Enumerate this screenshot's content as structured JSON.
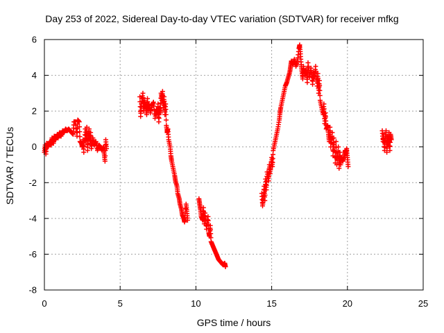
{
  "chart_data": {
    "type": "scatter",
    "title": "Day 253 of 2022, Sidereal Day-to-day VTEC variation (SDTVAR) for receiver mfkg",
    "xlabel": "GPS time / hours",
    "ylabel": "SDTVAR / TECUs",
    "xlim": [
      0,
      25
    ],
    "ylim": [
      -8,
      6
    ],
    "grid": true,
    "marker": "+",
    "color": "#ff0000",
    "xticks": [
      "0",
      "5",
      "10",
      "15",
      "20",
      "25"
    ],
    "yticks": [
      "-8",
      "-6",
      "-4",
      "-2",
      "0",
      "2",
      "4",
      "6"
    ],
    "segments": [
      [
        [
          0.0,
          -0.3
        ],
        [
          0.05,
          0.1
        ],
        [
          0.1,
          -0.4
        ],
        [
          0.15,
          0.2
        ],
        [
          0.25,
          0.0
        ],
        [
          0.35,
          0.3
        ],
        [
          0.45,
          0.1
        ],
        [
          0.5,
          0.5
        ],
        [
          0.6,
          0.2
        ],
        [
          0.65,
          0.6
        ],
        [
          0.75,
          0.4
        ],
        [
          0.85,
          0.7
        ],
        [
          0.9,
          0.5
        ],
        [
          1.0,
          0.8
        ],
        [
          1.1,
          0.6
        ],
        [
          1.2,
          0.9
        ],
        [
          1.3,
          0.8
        ],
        [
          1.4,
          1.0
        ],
        [
          1.5,
          0.9
        ],
        [
          1.6,
          1.0
        ],
        [
          1.7,
          0.9
        ],
        [
          1.8,
          0.8
        ],
        [
          1.9,
          0.7
        ],
        [
          1.95,
          1.4
        ],
        [
          2.05,
          1.4
        ],
        [
          2.15,
          0.6
        ],
        [
          2.2,
          1.5
        ],
        [
          2.3,
          1.4
        ],
        [
          2.35,
          0.3
        ],
        [
          2.45,
          0.2
        ],
        [
          2.5,
          0.0
        ],
        [
          2.55,
          0.4
        ],
        [
          2.6,
          -0.3
        ],
        [
          2.7,
          1.0
        ],
        [
          2.75,
          0.3
        ],
        [
          2.8,
          1.1
        ],
        [
          2.85,
          -0.2
        ],
        [
          2.9,
          0.5
        ],
        [
          2.95,
          1.0
        ],
        [
          3.0,
          0.2
        ],
        [
          3.05,
          0.8
        ],
        [
          3.1,
          -0.1
        ],
        [
          3.2,
          0.5
        ],
        [
          3.3,
          0.1
        ],
        [
          3.4,
          0.3
        ],
        [
          3.5,
          -0.2
        ],
        [
          3.6,
          0.1
        ],
        [
          3.7,
          0.0
        ],
        [
          3.8,
          -0.2
        ],
        [
          3.9,
          0.0
        ],
        [
          3.95,
          -0.4
        ],
        [
          4.0,
          -0.8
        ],
        [
          4.05,
          0.4
        ],
        [
          4.1,
          -0.1
        ]
      ],
      [
        [
          6.3,
          2.8
        ],
        [
          6.35,
          1.7
        ],
        [
          6.4,
          2.4
        ],
        [
          6.5,
          3.0
        ],
        [
          6.55,
          2.0
        ],
        [
          6.6,
          2.6
        ],
        [
          6.7,
          2.2
        ],
        [
          6.75,
          1.8
        ],
        [
          6.8,
          2.7
        ],
        [
          6.85,
          2.0
        ],
        [
          6.9,
          2.4
        ],
        [
          7.0,
          1.9
        ],
        [
          7.1,
          2.3
        ],
        [
          7.2,
          2.5
        ],
        [
          7.3,
          1.6
        ],
        [
          7.4,
          2.1
        ],
        [
          7.45,
          1.8
        ],
        [
          7.5,
          2.4
        ],
        [
          7.55,
          1.4
        ],
        [
          7.6,
          2.2
        ],
        [
          7.65,
          1.9
        ],
        [
          7.7,
          3.0
        ],
        [
          7.75,
          2.6
        ],
        [
          7.8,
          3.1
        ],
        [
          7.85,
          2.2
        ],
        [
          7.9,
          2.8
        ],
        [
          7.95,
          1.8
        ],
        [
          8.0,
          2.4
        ],
        [
          8.05,
          1.2
        ],
        [
          8.1,
          0.8
        ],
        [
          8.15,
          1.0
        ],
        [
          8.2,
          0.4
        ],
        [
          8.3,
          0.0
        ],
        [
          8.35,
          -0.5
        ],
        [
          8.4,
          -0.8
        ],
        [
          8.5,
          -1.2
        ],
        [
          8.6,
          -1.6
        ],
        [
          8.65,
          -1.9
        ],
        [
          8.75,
          -2.2
        ],
        [
          8.8,
          -2.6
        ],
        [
          8.9,
          -2.9
        ],
        [
          8.95,
          -3.2
        ],
        [
          9.05,
          -3.5
        ],
        [
          9.1,
          -3.8
        ],
        [
          9.2,
          -4.0
        ],
        [
          9.25,
          -4.2
        ],
        [
          9.35,
          -3.2
        ],
        [
          9.4,
          -3.6
        ],
        [
          9.45,
          -4.1
        ]
      ],
      [
        [
          10.2,
          -2.9
        ],
        [
          10.25,
          -3.2
        ],
        [
          10.3,
          -3.5
        ],
        [
          10.35,
          -3.9
        ],
        [
          10.45,
          -4.1
        ],
        [
          10.5,
          -3.4
        ],
        [
          10.55,
          -4.3
        ],
        [
          10.6,
          -3.7
        ],
        [
          10.7,
          -4.6
        ],
        [
          10.8,
          -3.9
        ],
        [
          10.85,
          -4.8
        ],
        [
          10.9,
          -5.0
        ],
        [
          10.95,
          -4.4
        ],
        [
          11.0,
          -5.3
        ],
        [
          11.1,
          -5.5
        ],
        [
          11.2,
          -5.7
        ],
        [
          11.3,
          -5.9
        ],
        [
          11.4,
          -6.1
        ],
        [
          11.5,
          -6.3
        ],
        [
          11.6,
          -6.4
        ],
        [
          11.7,
          -6.5
        ],
        [
          11.8,
          -6.6
        ],
        [
          11.9,
          -6.5
        ],
        [
          11.95,
          -6.7
        ]
      ],
      [
        [
          14.35,
          -2.6
        ],
        [
          14.4,
          -3.3
        ],
        [
          14.45,
          -2.9
        ],
        [
          14.5,
          -2.2
        ],
        [
          14.55,
          -3.0
        ],
        [
          14.6,
          -1.8
        ],
        [
          14.65,
          -2.4
        ],
        [
          14.7,
          -1.4
        ],
        [
          14.8,
          -1.9
        ],
        [
          14.85,
          -1.0
        ],
        [
          14.9,
          -1.5
        ],
        [
          15.0,
          -0.6
        ],
        [
          15.05,
          -1.1
        ],
        [
          15.1,
          -0.2
        ],
        [
          15.2,
          0.2
        ],
        [
          15.3,
          0.6
        ],
        [
          15.4,
          1.0
        ],
        [
          15.5,
          1.5
        ],
        [
          15.55,
          1.9
        ],
        [
          15.6,
          2.2
        ],
        [
          15.7,
          2.6
        ],
        [
          15.8,
          3.0
        ],
        [
          15.9,
          3.4
        ],
        [
          16.0,
          3.6
        ],
        [
          16.1,
          3.9
        ],
        [
          16.2,
          4.2
        ],
        [
          16.25,
          4.5
        ],
        [
          16.3,
          4.8
        ],
        [
          16.4,
          4.6
        ],
        [
          16.5,
          4.9
        ],
        [
          16.6,
          4.5
        ],
        [
          16.7,
          4.8
        ],
        [
          16.8,
          5.5
        ],
        [
          16.85,
          5.7
        ],
        [
          16.9,
          5.2
        ],
        [
          16.95,
          4.6
        ],
        [
          17.0,
          4.2
        ],
        [
          17.05,
          3.8
        ],
        [
          17.1,
          4.5
        ],
        [
          17.2,
          4.0
        ],
        [
          17.3,
          4.3
        ],
        [
          17.35,
          3.6
        ],
        [
          17.4,
          4.7
        ],
        [
          17.5,
          3.9
        ],
        [
          17.6,
          4.4
        ],
        [
          17.7,
          3.5
        ],
        [
          17.75,
          4.2
        ],
        [
          17.8,
          3.8
        ],
        [
          17.9,
          4.5
        ],
        [
          18.0,
          3.4
        ],
        [
          18.05,
          4.1
        ],
        [
          18.1,
          3.0
        ],
        [
          18.15,
          3.7
        ],
        [
          18.2,
          2.6
        ],
        [
          18.3,
          2.2
        ],
        [
          18.4,
          1.8
        ],
        [
          18.45,
          2.4
        ],
        [
          18.5,
          1.3
        ],
        [
          18.55,
          1.9
        ],
        [
          18.6,
          1.0
        ],
        [
          18.7,
          1.2
        ],
        [
          18.75,
          0.7
        ],
        [
          18.8,
          0.3
        ],
        [
          18.85,
          1.1
        ],
        [
          18.9,
          0.0
        ],
        [
          19.0,
          0.8
        ],
        [
          19.05,
          -0.5
        ],
        [
          19.1,
          0.5
        ],
        [
          19.2,
          -0.9
        ],
        [
          19.25,
          0.3
        ],
        [
          19.3,
          -1.0
        ],
        [
          19.4,
          0.0
        ],
        [
          19.45,
          -1.2
        ],
        [
          19.5,
          -0.3
        ],
        [
          19.55,
          -1.0
        ],
        [
          19.6,
          -0.6
        ],
        [
          19.7,
          -0.8
        ],
        [
          19.8,
          -0.5
        ],
        [
          19.85,
          -0.2
        ],
        [
          19.9,
          -0.4
        ],
        [
          19.95,
          -0.1
        ],
        [
          20.0,
          -0.6
        ],
        [
          20.05,
          -1.1
        ]
      ],
      [
        [
          22.3,
          0.9
        ],
        [
          22.35,
          0.3
        ],
        [
          22.4,
          0.7
        ],
        [
          22.45,
          -0.2
        ],
        [
          22.5,
          0.5
        ],
        [
          22.55,
          0.9
        ],
        [
          22.6,
          -0.3
        ],
        [
          22.65,
          0.6
        ],
        [
          22.7,
          0.1
        ],
        [
          22.75,
          0.8
        ],
        [
          22.8,
          -0.2
        ],
        [
          22.85,
          0.7
        ],
        [
          22.9,
          0.4
        ]
      ]
    ]
  }
}
